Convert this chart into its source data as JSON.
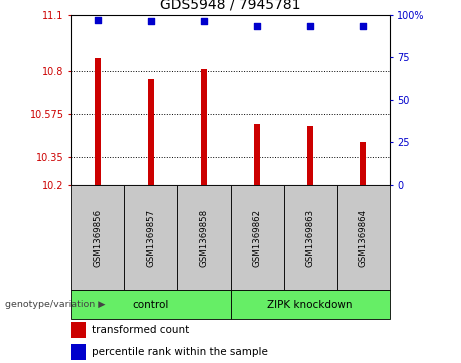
{
  "title": "GDS5948 / 7945781",
  "samples": [
    "GSM1369856",
    "GSM1369857",
    "GSM1369858",
    "GSM1369862",
    "GSM1369863",
    "GSM1369864"
  ],
  "bar_values": [
    10.87,
    10.76,
    10.81,
    10.52,
    10.51,
    10.43
  ],
  "percentile_values": [
    97,
    96,
    96,
    93,
    93,
    93
  ],
  "bar_color": "#cc0000",
  "dot_color": "#0000cc",
  "ylim_left": [
    10.2,
    11.1
  ],
  "ylim_right": [
    0,
    100
  ],
  "yticks_left": [
    10.2,
    10.35,
    10.575,
    10.8,
    11.1
  ],
  "ytick_labels_left": [
    "10.2",
    "10.35",
    "10.575",
    "10.8",
    "11.1"
  ],
  "yticks_right": [
    0,
    25,
    50,
    75,
    100
  ],
  "ytick_labels_right": [
    "0",
    "25",
    "50",
    "75",
    "100%"
  ],
  "group_label_prefix": "genotype/variation",
  "legend_bar_label": "transformed count",
  "legend_dot_label": "percentile rank within the sample",
  "left_tick_color": "#cc0000",
  "right_tick_color": "#0000cc",
  "green_color": "#66ee66",
  "gray_color": "#c8c8c8",
  "bar_bottom": 10.2
}
